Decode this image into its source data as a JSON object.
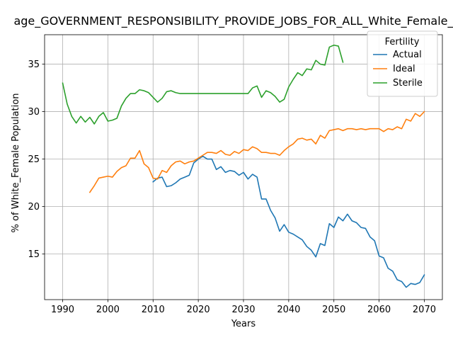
{
  "chart_data": {
    "type": "line",
    "title": "age_GOVERNMENT_RESPONSIBILITY_PROVIDE_JOBS_FOR_ALL_White_Female_",
    "xlabel": "Years",
    "ylabel": "% of White_Female Population",
    "xlim": [
      1986,
      2074
    ],
    "ylim": [
      10.2,
      38.1
    ],
    "xticks": [
      1990,
      2000,
      2010,
      2020,
      2030,
      2040,
      2050,
      2060,
      2070
    ],
    "yticks": [
      15,
      20,
      25,
      30,
      35
    ],
    "grid": true,
    "legend": {
      "title": "Fertility",
      "placement": "top-right"
    },
    "series": [
      {
        "name": "Actual",
        "color": "#1f77b4",
        "x": [
          2010,
          2011,
          2012,
          2013,
          2014,
          2015,
          2016,
          2017,
          2018,
          2019,
          2020,
          2021,
          2022,
          2023,
          2024,
          2025,
          2026,
          2027,
          2028,
          2029,
          2030,
          2031,
          2032,
          2033,
          2034,
          2035,
          2036,
          2037,
          2038,
          2039,
          2040,
          2041,
          2042,
          2043,
          2044,
          2045,
          2046,
          2047,
          2048,
          2049,
          2050,
          2051,
          2052,
          2053,
          2054,
          2055,
          2056,
          2057,
          2058,
          2059,
          2060,
          2061,
          2062,
          2063,
          2064,
          2065,
          2066,
          2067,
          2068,
          2069,
          2070
        ],
        "y": [
          22.6,
          23.0,
          23.1,
          22.1,
          22.2,
          22.5,
          22.9,
          23.1,
          23.3,
          24.6,
          25.0,
          25.3,
          25.0,
          25.0,
          23.9,
          24.2,
          23.6,
          23.8,
          23.7,
          23.3,
          23.6,
          22.9,
          23.4,
          23.1,
          20.8,
          20.8,
          19.6,
          18.8,
          17.4,
          18.1,
          17.3,
          17.1,
          16.8,
          16.5,
          15.8,
          15.4,
          14.7,
          16.1,
          15.9,
          18.2,
          17.8,
          18.9,
          18.5,
          19.2,
          18.5,
          18.3,
          17.8,
          17.7,
          16.8,
          16.4,
          14.8,
          14.6,
          13.5,
          13.2,
          12.3,
          12.1,
          11.5,
          11.9,
          11.8,
          12.0,
          12.8
        ]
      },
      {
        "name": "Ideal",
        "color": "#ff7f0e",
        "x": [
          1996,
          1997,
          1998,
          1999,
          2000,
          2001,
          2002,
          2003,
          2004,
          2005,
          2006,
          2007,
          2008,
          2009,
          2010,
          2011,
          2012,
          2013,
          2014,
          2015,
          2016,
          2017,
          2018,
          2019,
          2020,
          2021,
          2022,
          2023,
          2024,
          2025,
          2026,
          2027,
          2028,
          2029,
          2030,
          2031,
          2032,
          2033,
          2034,
          2035,
          2036,
          2037,
          2038,
          2039,
          2040,
          2041,
          2042,
          2043,
          2044,
          2045,
          2046,
          2047,
          2048,
          2049,
          2050,
          2051,
          2052,
          2053,
          2054,
          2055,
          2056,
          2057,
          2058,
          2059,
          2060,
          2061,
          2062,
          2063,
          2064,
          2065,
          2066,
          2067,
          2068,
          2069,
          2070
        ],
        "y": [
          21.5,
          22.2,
          23.0,
          23.1,
          23.2,
          23.1,
          23.7,
          24.1,
          24.3,
          25.1,
          25.1,
          25.9,
          24.5,
          24.1,
          23.0,
          22.9,
          23.8,
          23.6,
          24.3,
          24.7,
          24.8,
          24.5,
          24.7,
          24.8,
          25.1,
          25.4,
          25.7,
          25.7,
          25.6,
          25.9,
          25.5,
          25.4,
          25.8,
          25.6,
          26.0,
          25.9,
          26.3,
          26.1,
          25.7,
          25.7,
          25.6,
          25.6,
          25.4,
          25.9,
          26.3,
          26.6,
          27.1,
          27.2,
          27.0,
          27.1,
          26.6,
          27.5,
          27.2,
          28.0,
          28.1,
          28.2,
          28.0,
          28.2,
          28.2,
          28.1,
          28.2,
          28.1,
          28.2,
          28.2,
          28.2,
          27.9,
          28.2,
          28.1,
          28.4,
          28.2,
          29.2,
          29.0,
          29.8,
          29.5,
          30.0
        ]
      },
      {
        "name": "Sterile",
        "color": "#2ca02c",
        "x": [
          1990,
          1991,
          1992,
          1993,
          1994,
          1995,
          1996,
          1997,
          1998,
          1999,
          2000,
          2001,
          2002,
          2003,
          2004,
          2005,
          2006,
          2007,
          2008,
          2009,
          2010,
          2011,
          2012,
          2013,
          2014,
          2015,
          2016,
          2017,
          2018,
          2019,
          2020,
          2021,
          2022,
          2023,
          2024,
          2025,
          2026,
          2027,
          2028,
          2029,
          2030,
          2031,
          2032,
          2033,
          2034,
          2035,
          2036,
          2037,
          2038,
          2039,
          2040,
          2041,
          2042,
          2043,
          2044,
          2045,
          2046,
          2047,
          2048,
          2049,
          2050,
          2051,
          2052
        ],
        "y": [
          33.0,
          30.8,
          29.5,
          28.8,
          29.5,
          28.9,
          29.4,
          28.7,
          29.5,
          29.9,
          29.0,
          29.1,
          29.3,
          30.6,
          31.4,
          31.9,
          31.9,
          32.3,
          32.2,
          32.0,
          31.5,
          31.0,
          31.4,
          32.1,
          32.2,
          32.0,
          31.9,
          31.9,
          31.9,
          31.9,
          31.9,
          31.9,
          31.9,
          31.9,
          31.9,
          31.9,
          31.9,
          31.9,
          31.9,
          31.9,
          31.9,
          31.9,
          32.5,
          32.7,
          31.5,
          32.2,
          32.0,
          31.6,
          31.0,
          31.3,
          32.6,
          33.4,
          34.1,
          33.8,
          34.5,
          34.4,
          35.4,
          35.0,
          34.9,
          36.8,
          37.0,
          36.9,
          35.2
        ]
      }
    ]
  }
}
